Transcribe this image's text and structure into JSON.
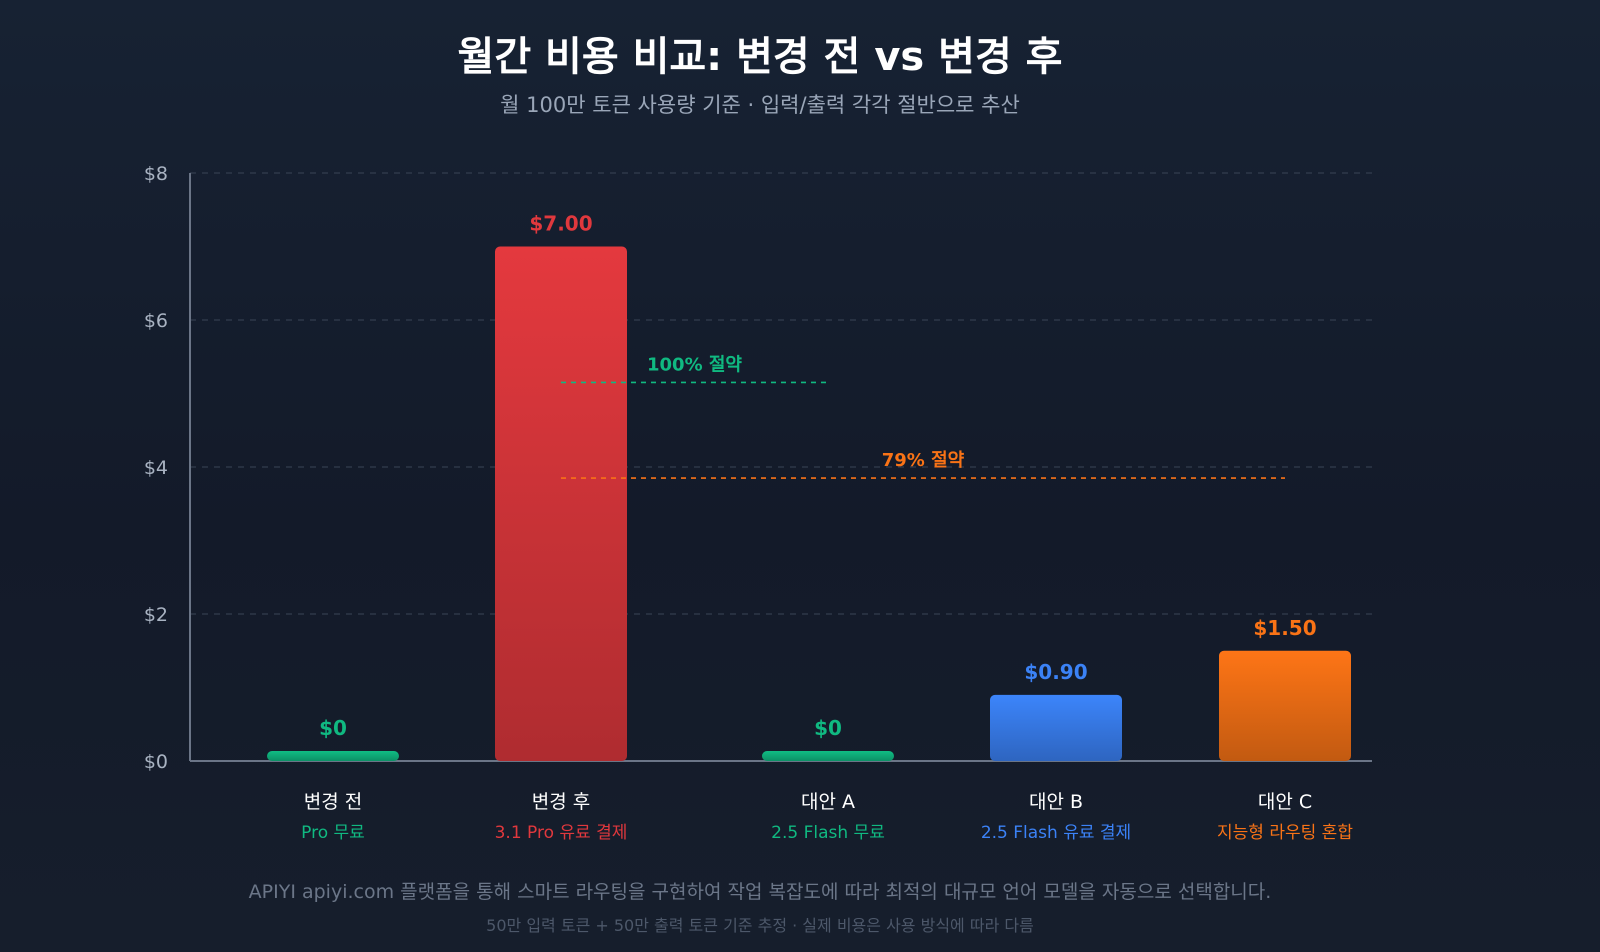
{
  "chart_data": {
    "type": "bar",
    "title": "월간 비용 비교: 변경 전 vs 변경 후",
    "subtitle": "월 100만 토큰 사용량 기준 · 입력/출력 각각 절반으로 추산",
    "xlabel": "",
    "ylabel": "",
    "ylim": [
      0,
      8
    ],
    "yticks": [
      0,
      2,
      4,
      6,
      8
    ],
    "ytick_labels": [
      "$0",
      "$2",
      "$4",
      "$6",
      "$8"
    ],
    "grid": true,
    "categories": [
      "변경 전",
      "변경 후",
      "대안 A",
      "대안 B",
      "대안 C"
    ],
    "subcategories": [
      "Pro 무료",
      "3.1 Pro 유료 결제",
      "2.5 Flash 무료",
      "2.5 Flash 유료 결제",
      "지능형 라우팅 혼합"
    ],
    "values": [
      0,
      7.0,
      0,
      0.9,
      1.5
    ],
    "data_labels": [
      "$0",
      "$7.00",
      "$0",
      "$0.90",
      "$1.50"
    ],
    "colors": [
      "#10b981",
      "#e0383d",
      "#10b981",
      "#3b82f6",
      "#f97316"
    ],
    "annotations": [
      {
        "text": "100% 절약",
        "y": 5.15,
        "from_category": 1,
        "to_category": 2,
        "color": "#10b981"
      },
      {
        "text": "79% 절약",
        "y": 3.85,
        "from_category": 1,
        "to_category": 4,
        "color": "#f97316"
      }
    ]
  },
  "footer": {
    "line1": "APIYI apiyi.com 플랫폼을 통해 스마트 라우팅을 구현하여 작업 복잡도에 따라 최적의 대규모 언어 모델을 자동으로 선택합니다.",
    "line2": "50만 입력 토큰 + 50만 출력 토큰 기준 추정 · 실제 비용은 사용 방식에 따라 다름"
  }
}
